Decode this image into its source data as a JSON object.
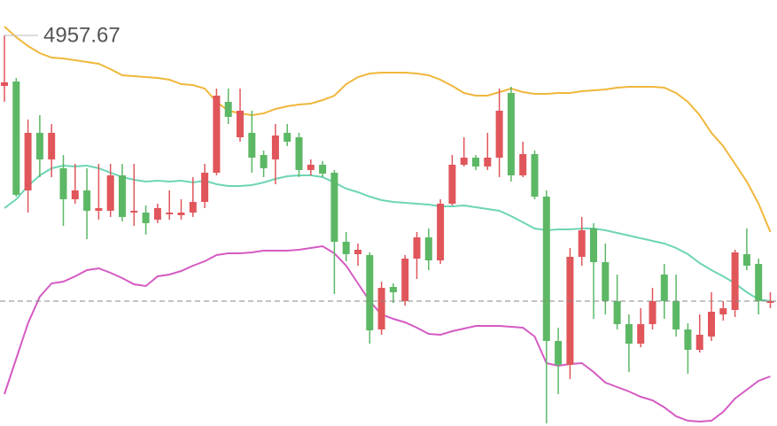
{
  "chart_data": {
    "type": "candlestick",
    "ylim": [
      4913.57,
      4961.67
    ],
    "up_color": "#e0565b",
    "down_color": "#5cb865",
    "open": [
      4951.97,
      4952.47,
      4940.17,
      4946.67,
      4943.67,
      4942.67,
      4939.17,
      4940.17,
      4937.87,
      4937.87,
      4941.87,
      4937.67,
      4937.67,
      4936.87,
      4937.47,
      4937.37,
      4937.67,
      4938.87,
      4942.17,
      4950.17,
      4946.17,
      4946.67,
      4944.17,
      4943.67,
      4946.67,
      4946.17,
      4942.47,
      4943.07,
      4942.17,
      4934.37,
      4932.97,
      4932.87,
      4924.47,
      4929.27,
      4927.67,
      4932.47,
      4934.87,
      4932.27,
      4938.67,
      4943.07,
      4943.87,
      4942.87,
      4943.87,
      4951.17,
      4941.87,
      4944.27,
      4939.47,
      4923.17,
      4920.47,
      4932.67,
      4935.87,
      4932.07,
      4927.67,
      4925.07,
      4922.87,
      4925.07,
      4930.67,
      4927.67,
      4924.47,
      4922.17,
      4923.67,
      4926.17,
      4926.67,
      4932.97,
      4931.87,
      4927.47
    ],
    "high": [
      4957.67,
      4952.87,
      4948.17,
      4948.67,
      4947.67,
      4944.17,
      4943.17,
      4942.67,
      4943.17,
      4943.17,
      4943.17,
      4943.17,
      4938.47,
      4938.67,
      4940.17,
      4939.17,
      4941.67,
      4943.17,
      4951.67,
      4951.67,
      4951.67,
      4949.17,
      4944.67,
      4947.67,
      4947.67,
      4946.67,
      4943.67,
      4943.47,
      4942.47,
      4935.47,
      4934.17,
      4933.17,
      4929.87,
      4929.67,
      4932.87,
      4935.47,
      4935.87,
      4939.17,
      4944.17,
      4946.17,
      4944.17,
      4946.67,
      4951.67,
      4951.87,
      4945.67,
      4944.67,
      4940.17,
      4924.67,
      4933.67,
      4937.17,
      4936.47,
      4934.17,
      4930.67,
      4926.17,
      4926.87,
      4929.17,
      4931.87,
      4930.67,
      4925.17,
      4926.17,
      4928.67,
      4927.67,
      4933.47,
      4935.87,
      4932.47,
      4928.67
    ],
    "low": [
      4950.17,
      4939.47,
      4937.67,
      4941.67,
      4941.67,
      4936.17,
      4938.67,
      4934.67,
      4936.87,
      4937.17,
      4936.67,
      4936.17,
      4935.17,
      4936.47,
      4936.87,
      4936.87,
      4937.17,
      4938.17,
      4941.87,
      4947.67,
      4945.67,
      4942.17,
      4941.67,
      4940.87,
      4945.17,
      4941.67,
      4941.87,
      4941.67,
      4928.47,
      4932.17,
      4931.67,
      4922.87,
      4923.87,
      4927.47,
      4927.17,
      4930.17,
      4931.17,
      4931.87,
      4938.47,
      4942.87,
      4942.47,
      4942.47,
      4941.67,
      4941.17,
      4941.67,
      4939.17,
      4913.87,
      4917.17,
      4918.87,
      4931.67,
      4925.67,
      4926.17,
      4924.47,
      4919.67,
      4922.47,
      4924.47,
      4925.67,
      4923.67,
      4919.47,
      4921.87,
      4923.17,
      4925.47,
      4925.87,
      4931.17,
      4926.17,
      4926.87
    ],
    "close": [
      4952.37,
      4939.67,
      4946.67,
      4943.67,
      4946.67,
      4939.17,
      4940.17,
      4937.87,
      4938.17,
      4941.87,
      4937.17,
      4937.87,
      4936.47,
      4938.17,
      4937.67,
      4937.67,
      4938.87,
      4942.17,
      4950.87,
      4948.47,
      4949.17,
      4943.87,
      4942.67,
      4946.37,
      4945.67,
      4942.47,
      4943.07,
      4942.07,
      4934.37,
      4932.97,
      4933.47,
      4924.37,
      4929.17,
      4928.67,
      4932.47,
      4934.87,
      4932.27,
      4938.67,
      4943.07,
      4943.87,
      4942.87,
      4943.87,
      4949.17,
      4941.87,
      4944.27,
      4939.47,
      4923.17,
      4920.47,
      4932.67,
      4935.67,
      4932.07,
      4927.67,
      4925.07,
      4922.87,
      4925.07,
      4927.67,
      4927.67,
      4924.47,
      4922.17,
      4923.87,
      4926.47,
      4926.87,
      4933.17,
      4931.67,
      4927.67,
      4927.67
    ],
    "bands": [
      {
        "color": "#f0b73c",
        "values": [
          4958.67,
          4957.47,
          4956.47,
          4955.67,
          4955.17,
          4955.07,
          4954.87,
          4954.67,
          4954.47,
          4953.87,
          4953.17,
          4953.07,
          4952.97,
          4952.87,
          4952.67,
          4952.17,
          4952.07,
          4951.67,
          4950.17,
          4949.17,
          4948.87,
          4948.67,
          4948.87,
          4949.37,
          4949.67,
          4949.87,
          4949.97,
          4950.37,
          4950.87,
          4952.17,
          4952.97,
          4953.37,
          4953.47,
          4953.47,
          4953.47,
          4953.37,
          4953.17,
          4952.67,
          4951.97,
          4951.17,
          4950.87,
          4950.87,
          4951.27,
          4951.67,
          4951.27,
          4951.07,
          4951.07,
          4951.17,
          4951.17,
          4951.37,
          4951.47,
          4951.57,
          4951.77,
          4951.87,
          4951.87,
          4951.87,
          4951.77,
          4951.17,
          4950.17,
          4948.67,
          4946.67,
          4945.17,
          4943.17,
          4941.17,
          4938.67,
          4935.47
        ]
      },
      {
        "color": "#6dd5b4",
        "values": [
          4938.17,
          4939.17,
          4940.67,
          4941.87,
          4942.67,
          4942.97,
          4942.87,
          4942.97,
          4942.67,
          4942.17,
          4941.67,
          4941.37,
          4941.17,
          4941.27,
          4941.17,
          4941.27,
          4941.07,
          4941.27,
          4940.87,
          4940.67,
          4940.67,
          4940.77,
          4941.07,
          4941.47,
          4941.77,
          4941.87,
          4941.87,
          4941.67,
          4941.07,
          4940.37,
          4939.97,
          4939.47,
          4939.07,
          4938.87,
          4938.77,
          4938.67,
          4938.57,
          4938.37,
          4938.37,
          4938.47,
          4938.27,
          4938.07,
          4937.87,
          4937.27,
          4936.57,
          4935.87,
          4935.67,
          4935.77,
          4935.77,
          4935.87,
          4935.87,
          4935.67,
          4935.37,
          4935.07,
          4934.77,
          4934.47,
          4934.17,
          4933.67,
          4932.97,
          4931.97,
          4931.17,
          4930.47,
          4929.67,
          4928.67,
          4927.87,
          4927.67
        ]
      },
      {
        "color": "#d45bc3",
        "values": [
          4917.17,
          4921.17,
          4925.17,
          4928.17,
          4929.67,
          4929.87,
          4930.47,
          4931.17,
          4931.37,
          4930.87,
          4930.27,
          4929.57,
          4929.37,
          4930.47,
          4930.67,
          4931.07,
          4931.67,
          4932.17,
          4932.87,
          4933.07,
          4933.07,
          4933.17,
          4933.37,
          4933.37,
          4933.37,
          4933.47,
          4933.67,
          4933.87,
          4933.07,
          4931.67,
          4929.67,
          4927.67,
          4926.17,
          4925.67,
          4925.27,
          4924.67,
          4923.97,
          4923.87,
          4924.27,
          4924.57,
          4924.87,
          4924.87,
          4924.87,
          4924.77,
          4924.67,
          4923.67,
          4920.67,
          4920.37,
          4920.57,
          4920.67,
          4919.67,
          4918.47,
          4917.97,
          4917.47,
          4916.87,
          4916.47,
          4915.67,
          4914.67,
          4914.17,
          4914.07,
          4914.17,
          4915.17,
          4916.67,
          4917.67,
          4918.67,
          4919.17
        ]
      }
    ]
  }
}
